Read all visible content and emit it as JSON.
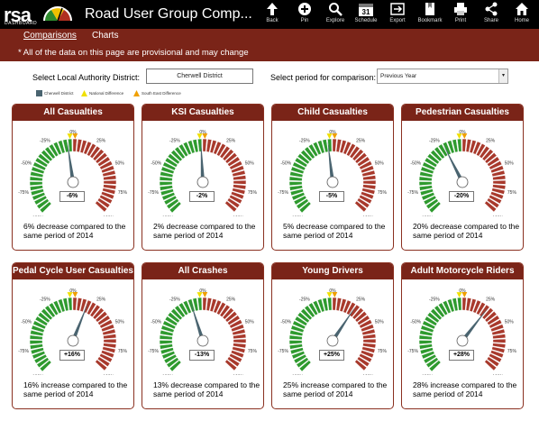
{
  "app": {
    "logo_text": "rsa",
    "logo_sub": "DASHBOARD",
    "title": "Road User Group Comp..."
  },
  "toolbar": {
    "back": "Back",
    "pin": "Pin",
    "explore": "Explore",
    "schedule": "Schedule",
    "export": "Export",
    "bookmark": "Bookmark",
    "print": "Print",
    "share": "Share",
    "home": "Home"
  },
  "nav": {
    "tabs": [
      {
        "label": "Comparisons",
        "active": true
      },
      {
        "label": "Charts",
        "active": false
      }
    ]
  },
  "notice": "* All of the data on this page are provisional and may change",
  "filters": {
    "lad_label": "Select Local Authority District:",
    "lad_value": "Cherwell District",
    "period_label": "Select period for comparison:",
    "period_value": "Previous Year"
  },
  "legend": [
    "Cherwell District",
    "National Difference",
    "South East Difference"
  ],
  "colors": {
    "header": "#7a2418",
    "green": "#2e9a2e",
    "red": "#a8392c",
    "needle": "#4a6470",
    "national_marker": "#f0e000",
    "regional_marker": "#f0a000"
  },
  "gauge_scale": {
    "labels": [
      "-100%",
      "-75%",
      "-50%",
      "-25%",
      "0%",
      "25%",
      "50%",
      "75%",
      "100%"
    ],
    "min": -100,
    "max": 100
  },
  "cards": [
    {
      "title": "All Casualties",
      "value_label": "-6%",
      "value": -6,
      "description": "6% decrease compared to the same period of 2014"
    },
    {
      "title": "KSI Casualties",
      "value_label": "-2%",
      "value": -2,
      "description": "2% decrease compared to the same period of 2014"
    },
    {
      "title": "Child Casualties",
      "value_label": "-5%",
      "value": -5,
      "description": "5% decrease compared to the same period of 2014"
    },
    {
      "title": "Pedestrian Casualties",
      "value_label": "-20%",
      "value": -20,
      "description": "20% decrease compared to the same period of 2014"
    },
    {
      "title": "Pedal Cycle User Casualties",
      "value_label": "+16%",
      "value": 16,
      "description": "16% increase compared to the same period of 2014"
    },
    {
      "title": "All Crashes",
      "value_label": "-13%",
      "value": -13,
      "description": "13% decrease compared to the same period of 2014"
    },
    {
      "title": "Young Drivers",
      "value_label": "+25%",
      "value": 25,
      "description": "25% increase compared to the same period of 2014"
    },
    {
      "title": "Adult Motorcycle Riders",
      "value_label": "+28%",
      "value": 28,
      "description": "28% increase compared to the same period of 2014"
    }
  ]
}
